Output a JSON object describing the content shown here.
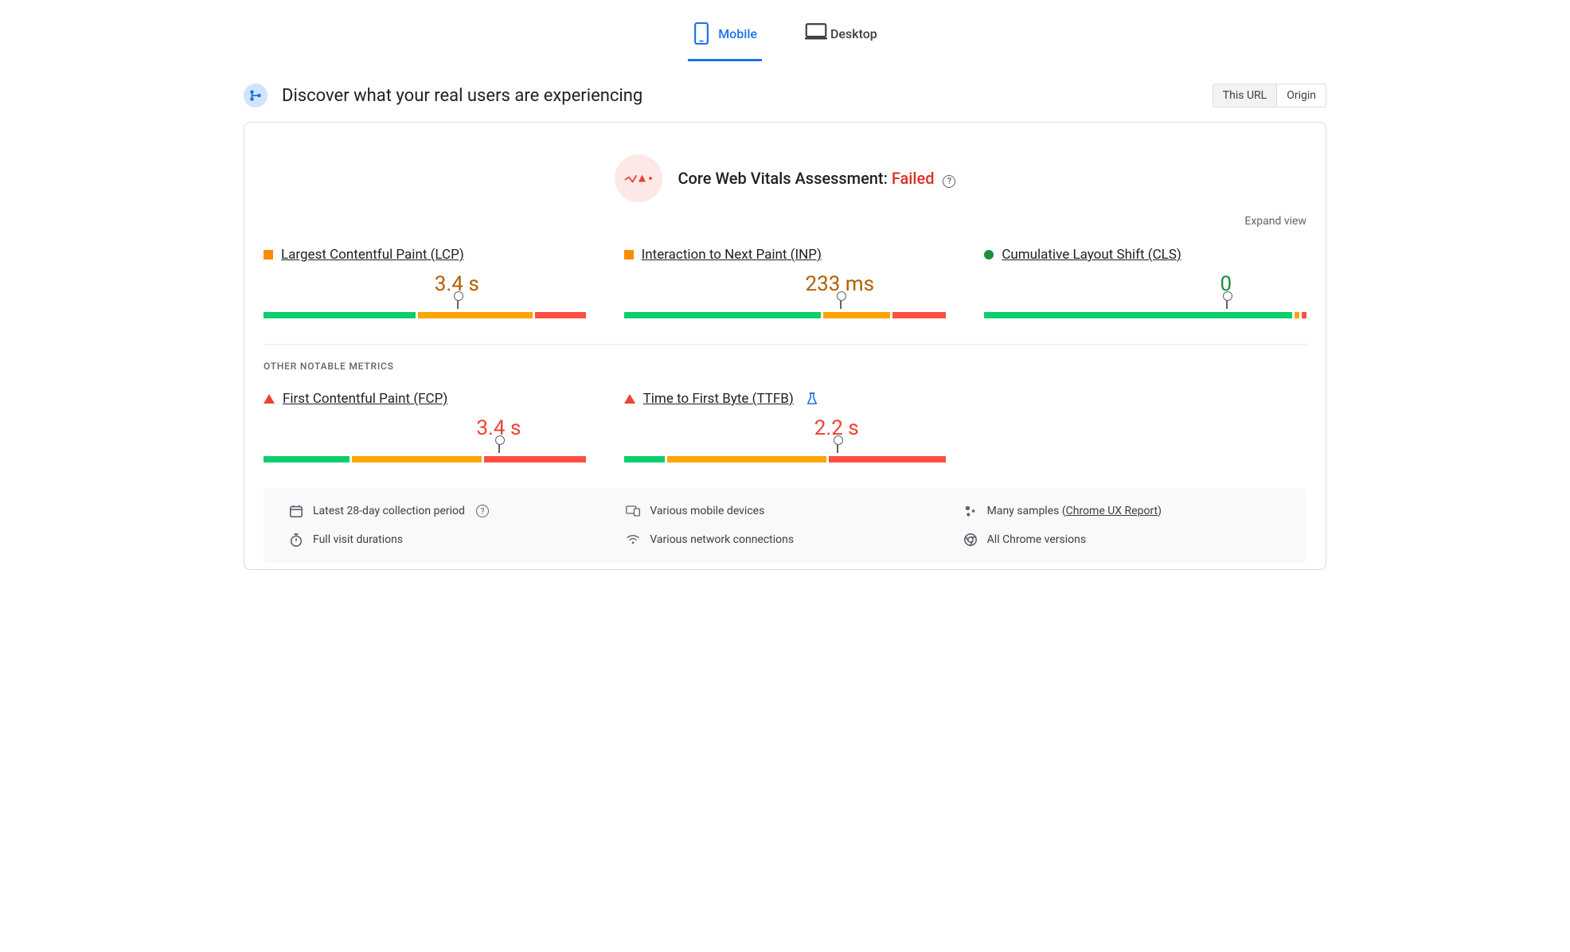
{
  "colors": {
    "primary": "#1a73e8",
    "text": "#202124",
    "muted": "#5f6368",
    "border": "#dadce0",
    "good": "#0cce6b",
    "avg": "#ffa400",
    "poor": "#ff4e42",
    "pass_text": "#1e8e3e",
    "warn_text": "#b06000",
    "fail_text": "#ea4335",
    "footer_bg": "#f8f9fa",
    "assessment_badge_bg": "#fce8e6",
    "crux_badge_bg": "#d2e3fc"
  },
  "tabs": {
    "mobile": "Mobile",
    "desktop": "Desktop",
    "active": "mobile"
  },
  "header": {
    "title": "Discover what your real users are experiencing",
    "toggle": {
      "this_url": "This URL",
      "origin": "Origin",
      "active": "this_url"
    }
  },
  "assessment": {
    "label": "Core Web Vitals Assessment:",
    "status": "Failed"
  },
  "expand_view": "Expand view",
  "section_other_label": "OTHER NOTABLE METRICS",
  "core_metrics": [
    {
      "key": "lcp",
      "name": "Largest Contentful Paint (LCP)",
      "status": "warn",
      "value": "3.4 s",
      "segments": {
        "good": 48,
        "avg": 36,
        "poor": 16
      },
      "needle": 60
    },
    {
      "key": "inp",
      "name": "Interaction to Next Paint (INP)",
      "status": "warn",
      "value": "233 ms",
      "segments": {
        "good": 62,
        "avg": 21,
        "poor": 17
      },
      "needle": 67
    },
    {
      "key": "cls",
      "name": "Cumulative Layout Shift (CLS)",
      "status": "pass",
      "value": "0",
      "segments": {
        "good": 97,
        "avg": 1.5,
        "poor": 1.5
      },
      "needle": 75
    }
  ],
  "other_metrics": [
    {
      "key": "fcp",
      "name": "First Contentful Paint (FCP)",
      "status": "fail",
      "value": "3.4 s",
      "segments": {
        "good": 27,
        "avg": 41,
        "poor": 32
      },
      "needle": 73,
      "experimental": false
    },
    {
      "key": "ttfb",
      "name": "Time to First Byte (TTFB)",
      "status": "fail",
      "value": "2.2 s",
      "segments": {
        "good": 13,
        "avg": 50,
        "poor": 37
      },
      "needle": 66,
      "experimental": true
    }
  ],
  "footer": {
    "period": "Latest 28-day collection period",
    "devices": "Various mobile devices",
    "samples_prefix": "Many samples (",
    "samples_link": "Chrome UX Report",
    "samples_suffix": ")",
    "durations": "Full visit durations",
    "connections": "Various network connections",
    "versions": "All Chrome versions"
  }
}
